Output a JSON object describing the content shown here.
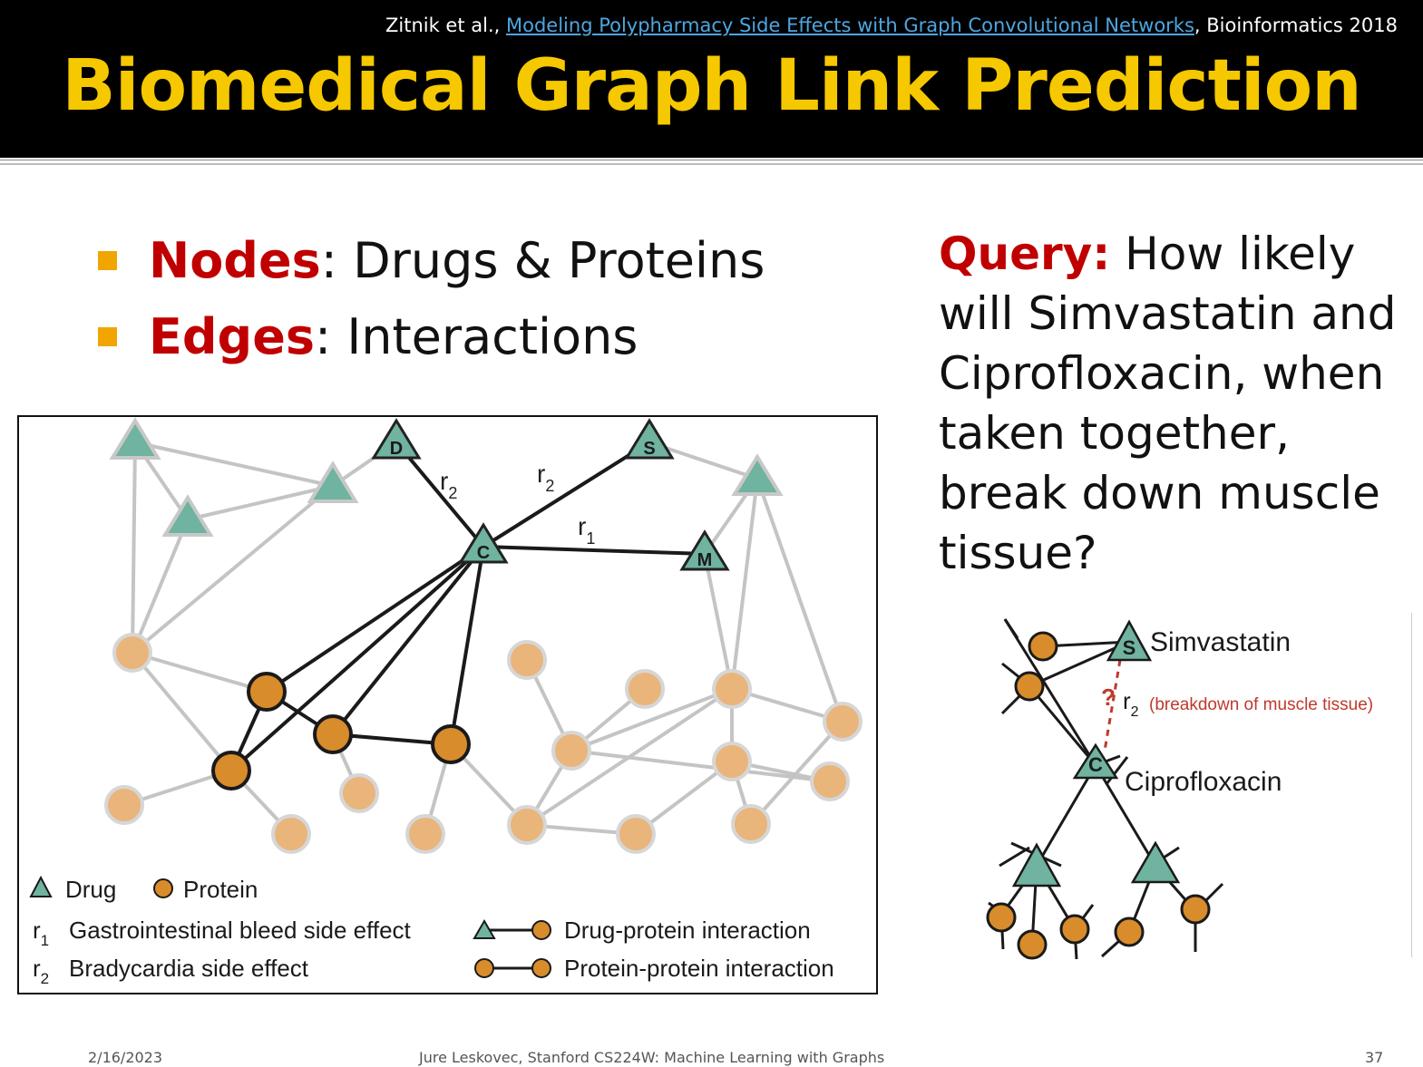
{
  "header": {
    "citation_prefix": "Zitnik et al., ",
    "citation_link": "Modeling Polypharmacy Side Effects with Graph Convolutional Networks",
    "citation_suffix": ", Bioinformatics 2018",
    "title": "Biomedical Graph Link Prediction"
  },
  "bullets": [
    {
      "key": "Nodes",
      "text": ": Drugs & Proteins"
    },
    {
      "key": "Edges",
      "text": ": Interactions"
    }
  ],
  "query": {
    "label": "Query:",
    "lines": [
      " How likely",
      "will Simvastatin and",
      "Ciprofloxacin, when",
      "taken together,",
      "break down muscle",
      "tissue?"
    ]
  },
  "figure": {
    "node_letters": {
      "D": "D",
      "S": "S",
      "C": "C",
      "M": "M"
    },
    "edge_labels": {
      "r2_left": "r",
      "r2_left_sub": "2",
      "r2_right": "r",
      "r2_right_sub": "2",
      "r1": "r",
      "r1_sub": "1"
    },
    "legend": {
      "drug": "Drug",
      "protein": "Protein",
      "r1_symbol": "r",
      "r1_sub": "1",
      "r1_text": "Gastrointestinal bleed side effect",
      "r2_symbol": "r",
      "r2_sub": "2",
      "r2_text": "Bradycardia side effect",
      "drug_protein": "Drug-protein interaction",
      "protein_protein": "Protein-protein interaction"
    }
  },
  "side_figure": {
    "s_letter": "S",
    "c_letter": "C",
    "simvastatin": "Simvastatin",
    "ciprofloxacin": "Ciprofloxacin",
    "question": "?",
    "r_symbol": "r",
    "r_sub": "2",
    "relation": "(breakdown of muscle tissue)"
  },
  "colors": {
    "drug": "#6fb3a0",
    "protein_dark": "#d98c2b",
    "protein_light": "#e9b57b",
    "highlight": "#c00000",
    "title": "#f5c800"
  },
  "footer": {
    "date": "2/16/2023",
    "course": "Jure Leskovec, Stanford CS224W: Machine Learning with Graphs",
    "page": "37"
  }
}
